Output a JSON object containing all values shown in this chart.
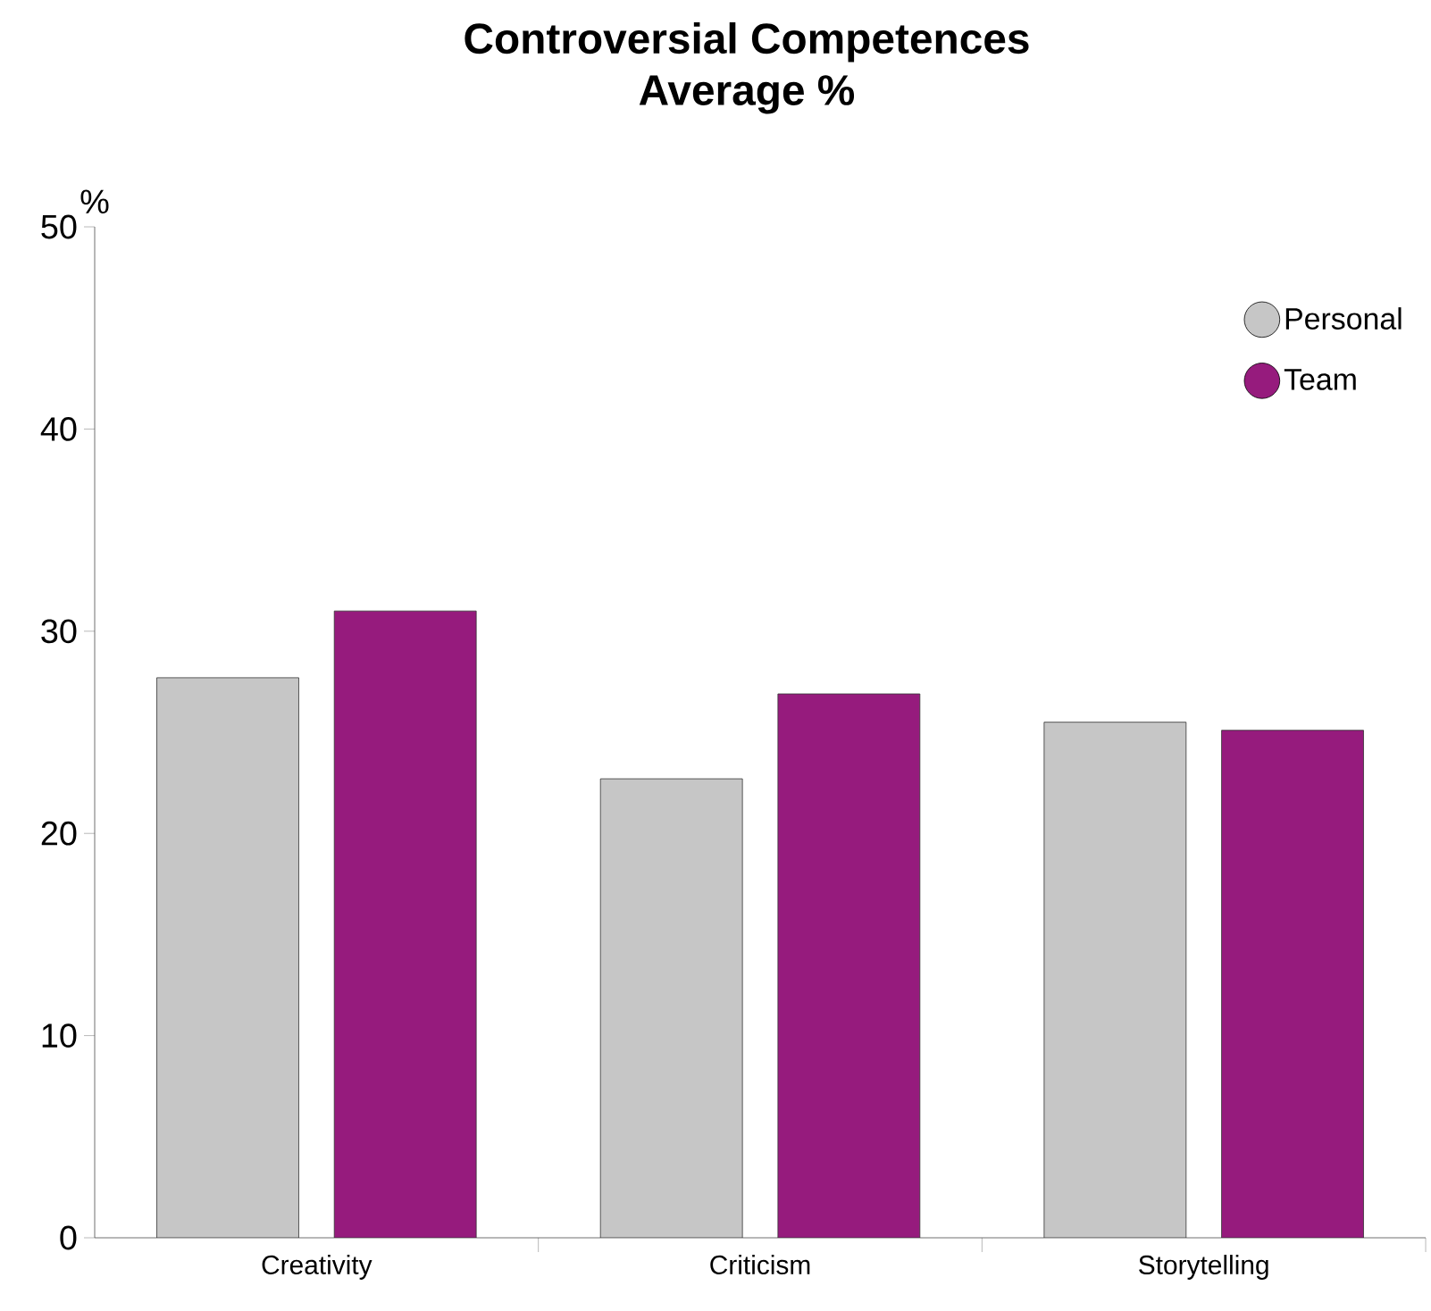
{
  "chart_data": {
    "type": "bar",
    "title": "Controversial Competences",
    "subtitle": "Average %",
    "ylabel": "%",
    "categories": [
      "Creativity",
      "Criticism",
      "Storytelling"
    ],
    "series": [
      {
        "name": "Personal",
        "color": "#c6c6c6",
        "values": [
          27.7,
          22.7,
          25.5
        ]
      },
      {
        "name": "Team",
        "color": "#961b7d",
        "values": [
          31.0,
          26.9,
          25.1
        ]
      }
    ],
    "ylim": [
      0,
      50
    ],
    "yticks": [
      0,
      10,
      20,
      30,
      40,
      50
    ],
    "grid": false,
    "legend": "top right"
  }
}
